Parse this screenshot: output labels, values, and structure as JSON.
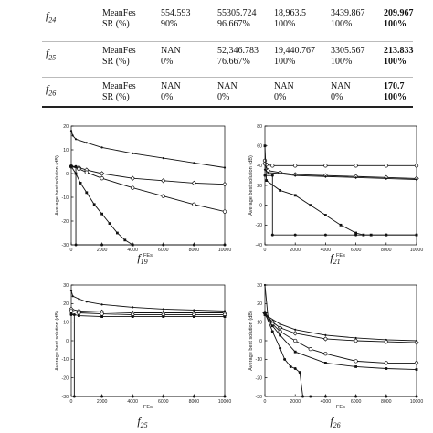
{
  "table": {
    "groups": [
      {
        "function": "f24",
        "rows": [
          {
            "metric": "MeanFes",
            "values": [
              "554.593",
              "55305.724",
              "18,963.5",
              "3439.867",
              "209.967"
            ]
          },
          {
            "metric": "SR (%)",
            "values": [
              "90%",
              "96.667%",
              "100%",
              "100%",
              "100%"
            ]
          }
        ]
      },
      {
        "function": "f25",
        "rows": [
          {
            "metric": "MeanFes",
            "values": [
              "NAN",
              "52,346.783",
              "19,440.767",
              "3305.567",
              "213.833"
            ]
          },
          {
            "metric": "SR (%)",
            "values": [
              "0%",
              "76.667%",
              "100%",
              "100%",
              "100%"
            ]
          }
        ]
      },
      {
        "function": "f26",
        "rows": [
          {
            "metric": "MeanFes",
            "values": [
              "NAN",
              "NAN",
              "NAN",
              "NAN",
              "170.7"
            ]
          },
          {
            "metric": "SR (%)",
            "values": [
              "0%",
              "0%",
              "0%",
              "0%",
              "100%"
            ]
          }
        ]
      }
    ]
  },
  "chart_data": [
    {
      "type": "line",
      "caption": "f19",
      "xlabel": "FEs",
      "ylabel": "Average best solution (dB)",
      "xlim": [
        0,
        10000
      ],
      "ylim": [
        -30,
        20
      ],
      "xticks": [
        0,
        2000,
        4000,
        6000,
        8000,
        10000
      ],
      "yticks": [
        -30,
        -20,
        -10,
        0,
        10,
        20
      ],
      "series": [
        {
          "marker": "point",
          "x": [
            0,
            100,
            300,
            1000,
            2000,
            4000,
            6000,
            8000,
            10000
          ],
          "y": [
            18,
            16,
            14.5,
            13,
            11,
            8.5,
            6.5,
            4.5,
            2.5
          ]
        },
        {
          "marker": "diamond",
          "x": [
            0,
            500,
            1000,
            2000,
            4000,
            6000,
            8000,
            10000
          ],
          "y": [
            3,
            2.5,
            1.5,
            0,
            -2,
            -3,
            -4,
            -4.5
          ]
        },
        {
          "marker": "circle",
          "x": [
            0,
            500,
            1000,
            2000,
            4000,
            6000,
            8000,
            10000
          ],
          "y": [
            3,
            2,
            0.5,
            -2,
            -6,
            -9.5,
            -13,
            -16
          ]
        },
        {
          "marker": "square",
          "x": [
            0,
            300,
            600,
            1000,
            1500,
            2000,
            2500,
            3000,
            3500,
            4000
          ],
          "y": [
            3,
            0,
            -4,
            -8,
            -13,
            -17,
            -21,
            -25,
            -28,
            -30
          ]
        },
        {
          "marker": "star",
          "x": [
            0,
            300,
            300,
            2000,
            4000,
            6000,
            8000,
            10000
          ],
          "y": [
            3,
            3,
            -30,
            -30,
            -30,
            -30,
            -30,
            -30
          ]
        }
      ]
    },
    {
      "type": "line",
      "caption": "f21",
      "xlabel": "FEs",
      "ylabel": "Average best solution (dB)",
      "xlim": [
        0,
        10000
      ],
      "ylim": [
        -40,
        80
      ],
      "xticks": [
        0,
        2000,
        4000,
        6000,
        8000,
        10000
      ],
      "yticks": [
        -40,
        -20,
        0,
        20,
        40,
        60,
        80
      ],
      "series": [
        {
          "marker": "circle",
          "x": [
            0,
            100,
            500,
            2000,
            4000,
            6000,
            8000,
            10000
          ],
          "y": [
            45,
            41,
            40,
            40,
            40,
            40,
            40,
            40
          ]
        },
        {
          "marker": "diamond",
          "x": [
            0,
            200,
            1000,
            2000,
            4000,
            6000,
            8000,
            10000
          ],
          "y": [
            42,
            35,
            33,
            31,
            30,
            29,
            28,
            27
          ]
        },
        {
          "marker": "point",
          "x": [
            0,
            200,
            1000,
            2000,
            4000,
            6000,
            8000,
            10000
          ],
          "y": [
            36,
            33,
            32,
            30,
            29,
            28,
            27,
            26
          ]
        },
        {
          "marker": "square",
          "x": [
            0,
            100,
            1000,
            2000,
            3000,
            4000,
            5000,
            6000,
            6500,
            7000,
            8000,
            10000
          ],
          "y": [
            60,
            25,
            15,
            10,
            0,
            -10,
            -20,
            -28,
            -30,
            -30,
            -30,
            -30
          ]
        },
        {
          "marker": "star",
          "x": [
            0,
            500,
            500,
            2000,
            4000,
            6000,
            8000,
            10000
          ],
          "y": [
            30,
            30,
            -30,
            -30,
            -30,
            -30,
            -30,
            -30
          ]
        }
      ]
    },
    {
      "type": "line",
      "caption": "f25",
      "xlabel": "FEs",
      "ylabel": "Average best solution (dB)",
      "xlim": [
        0,
        10000
      ],
      "ylim": [
        -30,
        30
      ],
      "xticks": [
        0,
        2000,
        4000,
        6000,
        8000,
        10000
      ],
      "yticks": [
        -30,
        -20,
        -10,
        0,
        10,
        20,
        30
      ],
      "series": [
        {
          "marker": "point",
          "x": [
            0,
            100,
            500,
            1000,
            2000,
            4000,
            6000,
            8000,
            10000
          ],
          "y": [
            27,
            24,
            22.5,
            21,
            19.5,
            18,
            17,
            16.5,
            16
          ]
        },
        {
          "marker": "diamond",
          "x": [
            0,
            500,
            2000,
            4000,
            6000,
            8000,
            10000
          ],
          "y": [
            17,
            16,
            15.5,
            15,
            15,
            15,
            15
          ]
        },
        {
          "marker": "circle",
          "x": [
            0,
            500,
            2000,
            4000,
            6000,
            8000,
            10000
          ],
          "y": [
            16,
            15,
            14.5,
            14,
            14,
            14,
            14
          ]
        },
        {
          "marker": "square",
          "x": [
            0,
            500,
            2000,
            4000,
            6000,
            8000,
            10000
          ],
          "y": [
            14.5,
            13.5,
            13,
            13,
            13,
            13,
            13
          ]
        },
        {
          "marker": "star",
          "x": [
            0,
            200,
            200,
            2000,
            4000,
            6000,
            8000,
            10000
          ],
          "y": [
            14,
            14,
            -30,
            -30,
            -30,
            -30,
            -30,
            -30
          ]
        }
      ]
    },
    {
      "type": "line",
      "caption": "f26",
      "xlabel": "FEs",
      "ylabel": "Average best solution (dB)",
      "xlim": [
        0,
        10000
      ],
      "ylim": [
        -30,
        30
      ],
      "xticks": [
        0,
        2000,
        4000,
        6000,
        8000,
        10000
      ],
      "yticks": [
        -30,
        -20,
        -10,
        0,
        10,
        20,
        30
      ],
      "series": [
        {
          "marker": "point",
          "x": [
            0,
            200,
            1000,
            2000,
            4000,
            6000,
            8000,
            10000
          ],
          "y": [
            30,
            13,
            9,
            6,
            3,
            1.5,
            0.5,
            0
          ]
        },
        {
          "marker": "diamond",
          "x": [
            0,
            500,
            1000,
            2000,
            4000,
            6000,
            8000,
            10000
          ],
          "y": [
            15,
            10,
            7,
            4,
            1,
            0,
            -0.5,
            -1
          ]
        },
        {
          "marker": "circle",
          "x": [
            0,
            500,
            1000,
            2000,
            3000,
            4000,
            6000,
            8000,
            10000
          ],
          "y": [
            15,
            9,
            5,
            0,
            -4.5,
            -7,
            -11,
            -12,
            -12
          ]
        },
        {
          "marker": "square",
          "x": [
            0,
            500,
            1000,
            2000,
            4000,
            6000,
            8000,
            10000
          ],
          "y": [
            14,
            8,
            3,
            -6,
            -12,
            -14,
            -15,
            -15.5
          ]
        },
        {
          "marker": "star",
          "x": [
            0,
            500,
            1000,
            1300,
            1700,
            2000,
            2300,
            2500,
            3000,
            4000,
            6000,
            8000,
            10000
          ],
          "y": [
            15,
            5,
            -4,
            -10,
            -14,
            -15,
            -17,
            -30,
            -30,
            -30,
            -30,
            -30,
            -30
          ]
        }
      ]
    }
  ]
}
